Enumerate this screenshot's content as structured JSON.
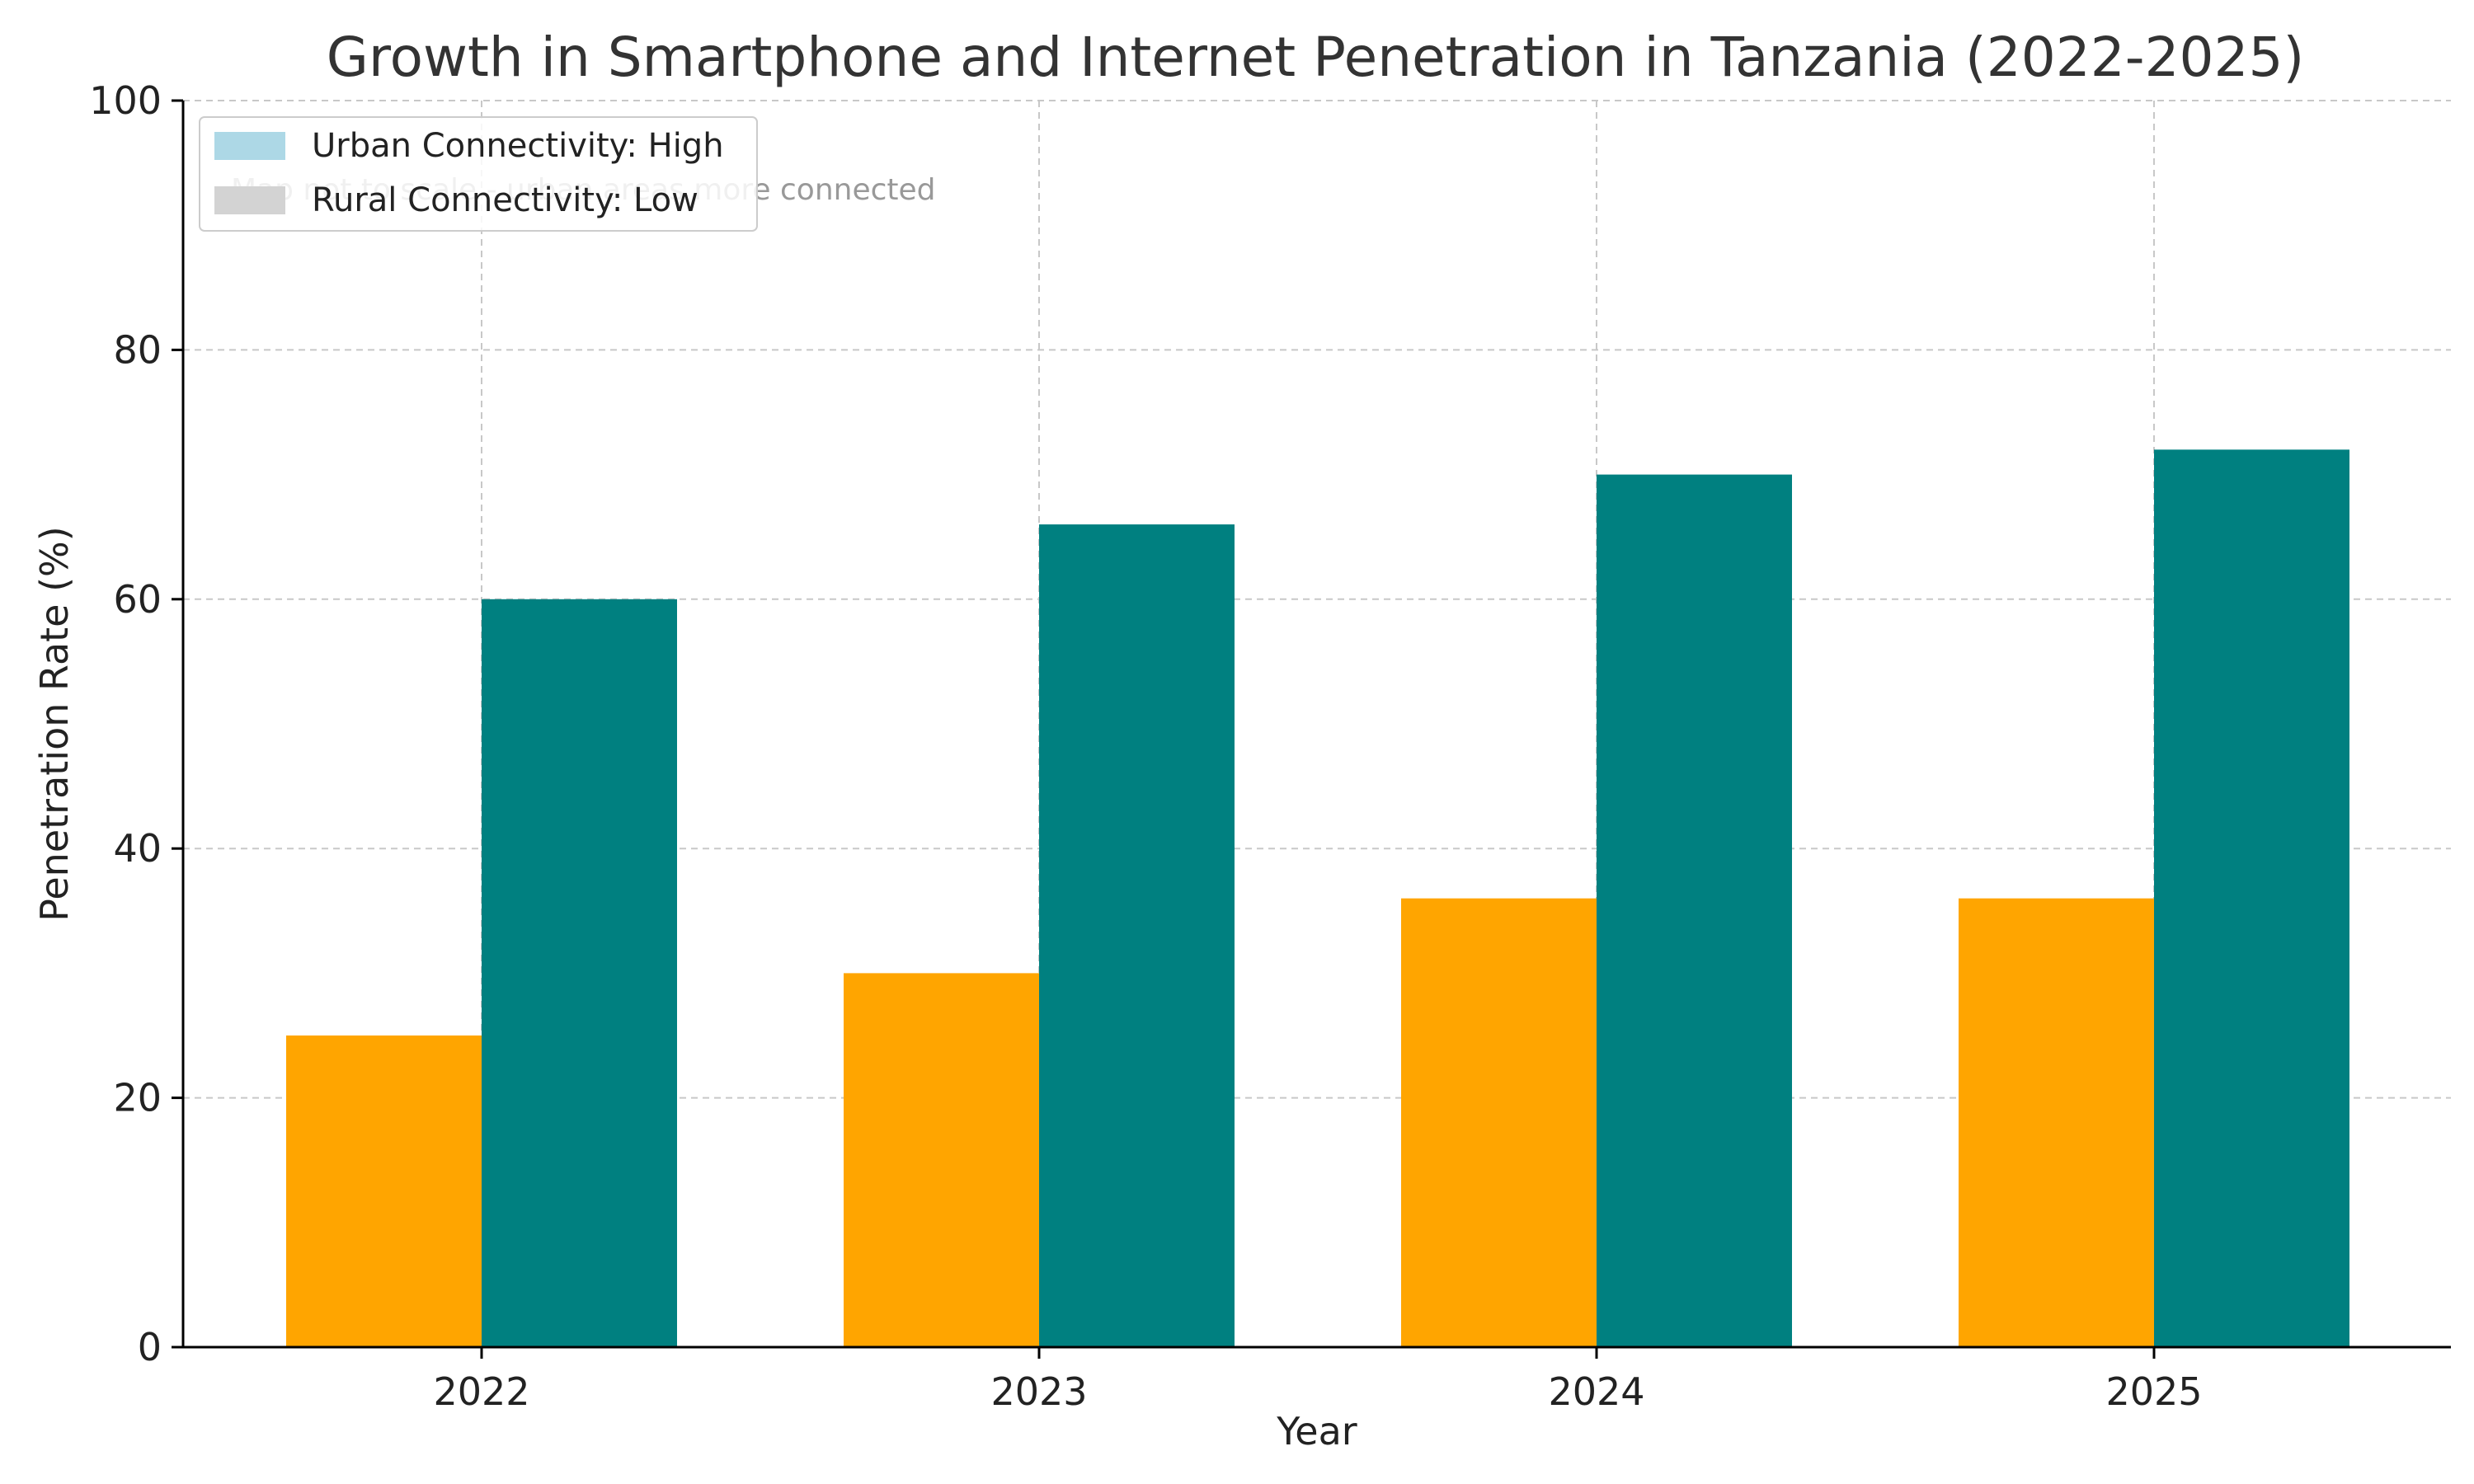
{
  "chart_data": {
    "type": "bar",
    "title": "Growth in Smartphone and Internet Penetration in Tanzania (2022-2025)",
    "xlabel": "Year",
    "ylabel": "Penetration Rate (%)",
    "categories": [
      "2022",
      "2023",
      "2024",
      "2025"
    ],
    "series": [
      {
        "values": [
          25,
          30,
          36,
          36
        ],
        "color": "#FFA500"
      },
      {
        "values": [
          60,
          66,
          70,
          72
        ],
        "color": "#008080"
      }
    ],
    "ylim": [
      0,
      100
    ],
    "yticks": [
      "0",
      "20",
      "40",
      "60",
      "80",
      "100"
    ],
    "grid": true,
    "legend": {
      "placement": "top-left",
      "items": [
        {
          "label": "Urban Connectivity: High",
          "color": "#ADD8E6"
        },
        {
          "label": "Rural Connectivity: Low",
          "color": "#D3D3D3"
        }
      ]
    },
    "annotation": "Map not to scale - urban areas more connected"
  }
}
